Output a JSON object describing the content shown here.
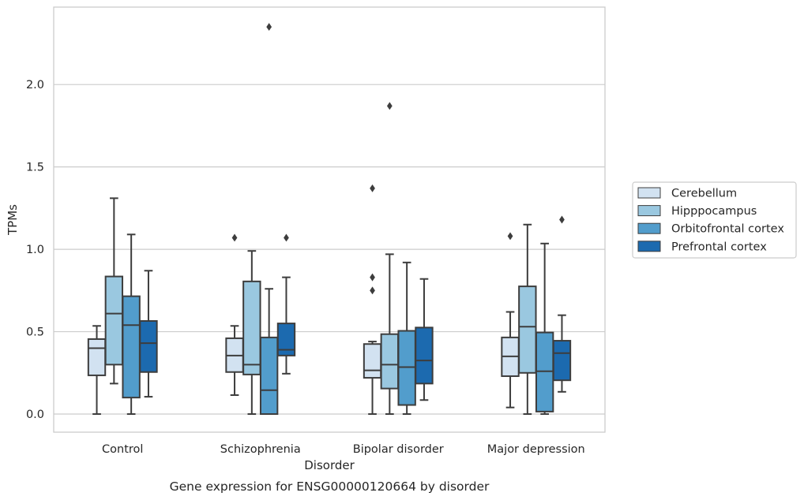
{
  "chart_data": {
    "type": "boxplot",
    "caption": "Gene expression for ENSG00000120664 by disorder",
    "xlabel": "Disorder",
    "ylabel": "TPMs",
    "ylim": [
      -0.11,
      2.47
    ],
    "yticks": [
      0.0,
      0.5,
      1.0,
      1.5,
      2.0
    ],
    "grid": true,
    "legend_position": "right",
    "categories": [
      "Control",
      "Schizophrenia",
      "Bipolar disorder",
      "Major depression"
    ],
    "series": [
      {
        "name": "Cerebellum",
        "color": "#d2e2f1",
        "boxes": [
          {
            "whisker_low": 0.0,
            "q1": 0.235,
            "median": 0.4,
            "q3": 0.455,
            "whisker_high": 0.535,
            "outliers": []
          },
          {
            "whisker_low": 0.115,
            "q1": 0.255,
            "median": 0.355,
            "q3": 0.46,
            "whisker_high": 0.535,
            "outliers": [
              1.07
            ]
          },
          {
            "whisker_low": 0.0,
            "q1": 0.22,
            "median": 0.265,
            "q3": 0.425,
            "whisker_high": 0.44,
            "outliers": [
              0.75,
              0.83,
              1.37
            ]
          },
          {
            "whisker_low": 0.04,
            "q1": 0.23,
            "median": 0.35,
            "q3": 0.465,
            "whisker_high": 0.62,
            "outliers": [
              1.08
            ]
          }
        ]
      },
      {
        "name": "Hipppocampus",
        "color": "#9ac8e0",
        "boxes": [
          {
            "whisker_low": 0.185,
            "q1": 0.3,
            "median": 0.61,
            "q3": 0.835,
            "whisker_high": 1.31,
            "outliers": []
          },
          {
            "whisker_low": 0.0,
            "q1": 0.24,
            "median": 0.3,
            "q3": 0.805,
            "whisker_high": 0.99,
            "outliers": []
          },
          {
            "whisker_low": 0.0,
            "q1": 0.155,
            "median": 0.3,
            "q3": 0.485,
            "whisker_high": 0.97,
            "outliers": [
              1.87
            ]
          },
          {
            "whisker_low": 0.0,
            "q1": 0.25,
            "median": 0.53,
            "q3": 0.775,
            "whisker_high": 1.15,
            "outliers": []
          }
        ]
      },
      {
        "name": "Orbitofrontal cortex",
        "color": "#529dcc",
        "boxes": [
          {
            "whisker_low": 0.0,
            "q1": 0.1,
            "median": 0.54,
            "q3": 0.715,
            "whisker_high": 1.09,
            "outliers": []
          },
          {
            "whisker_low": 0.0,
            "q1": 0.0,
            "median": 0.145,
            "q3": 0.465,
            "whisker_high": 0.76,
            "outliers": [
              2.35
            ]
          },
          {
            "whisker_low": 0.0,
            "q1": 0.055,
            "median": 0.285,
            "q3": 0.505,
            "whisker_high": 0.92,
            "outliers": []
          },
          {
            "whisker_low": 0.0,
            "q1": 0.015,
            "median": 0.26,
            "q3": 0.495,
            "whisker_high": 1.035,
            "outliers": []
          }
        ]
      },
      {
        "name": "Prefrontal cortex",
        "color": "#1c6aaf",
        "boxes": [
          {
            "whisker_low": 0.105,
            "q1": 0.255,
            "median": 0.43,
            "q3": 0.565,
            "whisker_high": 0.87,
            "outliers": []
          },
          {
            "whisker_low": 0.245,
            "q1": 0.355,
            "median": 0.39,
            "q3": 0.55,
            "whisker_high": 0.83,
            "outliers": [
              1.07
            ]
          },
          {
            "whisker_low": 0.085,
            "q1": 0.185,
            "median": 0.325,
            "q3": 0.525,
            "whisker_high": 0.82,
            "outliers": []
          },
          {
            "whisker_low": 0.135,
            "q1": 0.205,
            "median": 0.37,
            "q3": 0.445,
            "whisker_high": 0.6,
            "outliers": [
              1.18
            ]
          }
        ]
      }
    ]
  }
}
